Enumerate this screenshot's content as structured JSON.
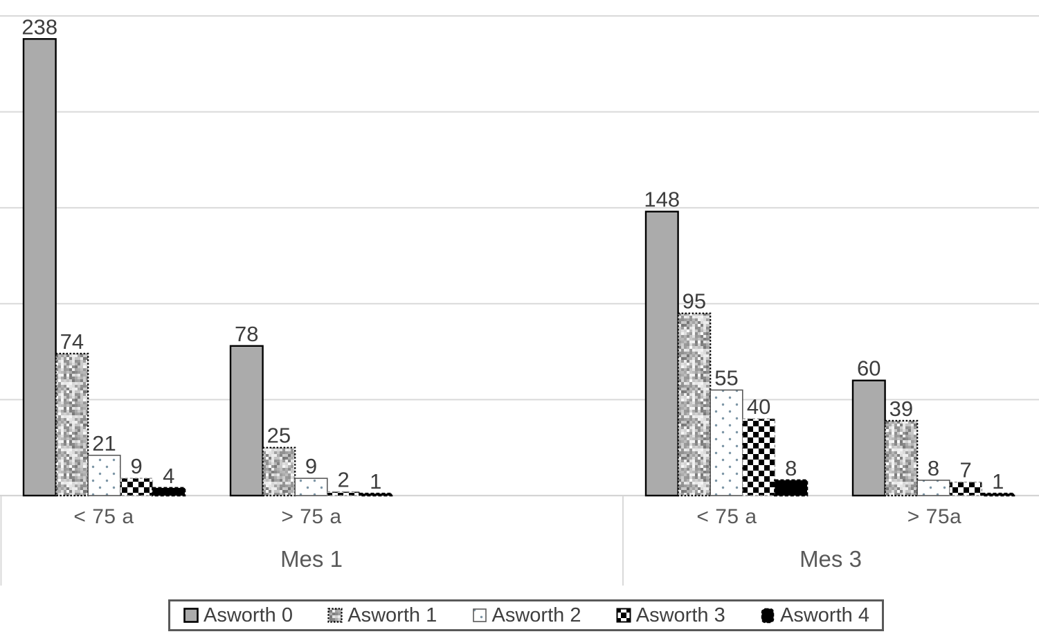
{
  "chart_data": {
    "type": "bar",
    "title": "",
    "xlabel": "",
    "ylabel": "",
    "ylim": [
      0,
      250
    ],
    "gridline_step": 50,
    "grid": true,
    "legend_position": "bottom",
    "y_axis_labels_visible": false,
    "categories": [
      "< 75 a | Mes 1",
      "> 75 a | Mes 1",
      "< 75 a | Mes 3",
      "> 75a | Mes 3"
    ],
    "series": [
      {
        "name": "Asworth 0",
        "pattern": "solid-gray",
        "values": [
          238,
          78,
          148,
          60
        ]
      },
      {
        "name": "Asworth 1",
        "pattern": "speckle",
        "values": [
          74,
          25,
          95,
          39
        ]
      },
      {
        "name": "Asworth 2",
        "pattern": "white-dots",
        "values": [
          21,
          9,
          55,
          8
        ]
      },
      {
        "name": "Asworth 3",
        "pattern": "checkerboard",
        "values": [
          9,
          2,
          40,
          7
        ]
      },
      {
        "name": "Asworth 4",
        "pattern": "solid-black",
        "values": [
          4,
          1,
          8,
          1
        ]
      }
    ],
    "x_axis": {
      "age_labels": [
        "< 75 a",
        "> 75 a",
        "< 75 a",
        "> 75a"
      ],
      "month_labels": [
        "Mes 1",
        "Mes 3"
      ]
    }
  },
  "colors": {
    "bar_gray": "#ababab",
    "bar_black": "#000000",
    "bar_outline": "#000000",
    "dot_fill": "#7d96a6",
    "gridline": "#d9d9d9",
    "axis_line": "#d4d4d4",
    "value_label_text": "#3d3d3d",
    "axis_label_text": "#595959",
    "legend_border": "#595959",
    "legend_text": "#3f3f3f"
  }
}
